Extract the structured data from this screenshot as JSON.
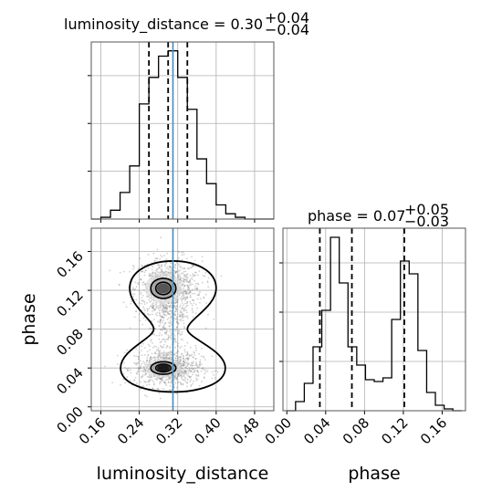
{
  "chart_data": [
    {
      "type": "histogram",
      "panel": "luminosity_distance-marginal",
      "title": "luminosity_distance = 0.30",
      "title_sup": "+0.04",
      "title_sub": "−0.04",
      "xlim": [
        0.14,
        0.52
      ],
      "ylim": [
        0,
        1.0
      ],
      "grid": true,
      "bin_edges": [
        0.14,
        0.16,
        0.18,
        0.2,
        0.22,
        0.24,
        0.26,
        0.28,
        0.3,
        0.32,
        0.34,
        0.36,
        0.38,
        0.4,
        0.42,
        0.44,
        0.46,
        0.48,
        0.5,
        0.52
      ],
      "counts": [
        0.0,
        0.01,
        0.05,
        0.15,
        0.3,
        0.65,
        0.8,
        0.92,
        0.95,
        0.8,
        0.62,
        0.34,
        0.2,
        0.08,
        0.03,
        0.01,
        0.0,
        0.0,
        0.0
      ],
      "quantiles": [
        0.26,
        0.3,
        0.34
      ],
      "truth": 0.31
    },
    {
      "type": "scatter",
      "panel": "phase-vs-luminosity_distance",
      "xlabel": "luminosity_distance",
      "ylabel": "phase",
      "xlim": [
        0.14,
        0.52
      ],
      "ylim": [
        -0.004,
        0.184
      ],
      "xticks": [
        "0.16",
        "0.24",
        "0.32",
        "0.40",
        "0.48"
      ],
      "yticks": [
        "0.00",
        "0.04",
        "0.08",
        "0.12",
        "0.16"
      ],
      "grid": true,
      "modes": [
        {
          "x": 0.3,
          "y": 0.122,
          "sx": 0.035,
          "sy": 0.016
        },
        {
          "x": 0.3,
          "y": 0.04,
          "sx": 0.035,
          "sy": 0.01
        }
      ],
      "truth_x": 0.31
    },
    {
      "type": "histogram",
      "panel": "phase-marginal",
      "title": "phase = 0.07",
      "title_sup": "+0.05",
      "title_sub": "−0.03",
      "xlabel": "phase",
      "xlim": [
        -0.004,
        0.184
      ],
      "ylim": [
        0,
        1.0
      ],
      "xticks": [
        "0.00",
        "0.04",
        "0.08",
        "0.12",
        "0.16"
      ],
      "grid": true,
      "bin_edges": [
        0.0,
        0.009,
        0.018,
        0.027,
        0.036,
        0.045,
        0.054,
        0.063,
        0.072,
        0.081,
        0.09,
        0.099,
        0.108,
        0.117,
        0.126,
        0.135,
        0.144,
        0.153,
        0.162,
        0.171,
        0.18
      ],
      "counts": [
        0.0,
        0.05,
        0.15,
        0.35,
        0.55,
        0.95,
        0.7,
        0.35,
        0.25,
        0.17,
        0.16,
        0.18,
        0.5,
        0.82,
        0.75,
        0.33,
        0.1,
        0.03,
        0.01,
        0.0
      ],
      "quantiles": [
        0.034,
        0.067,
        0.121
      ]
    }
  ],
  "colors": {
    "truth": "#4b8ab8",
    "hist": "#000000",
    "grid": "#b0b0b0"
  }
}
